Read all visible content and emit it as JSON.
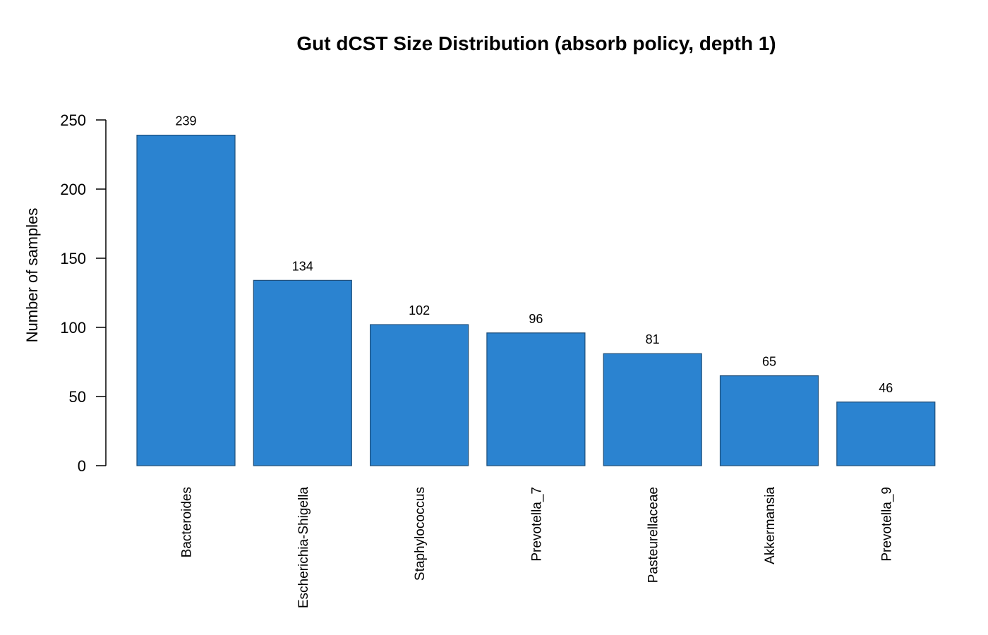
{
  "chart_data": {
    "type": "bar",
    "title": "Gut dCST Size Distribution (absorb policy, depth 1)",
    "xlabel": "",
    "ylabel": "Number of samples",
    "categories": [
      "Bacteroides",
      "Escherichia-Shigella",
      "Staphylococcus",
      "Prevotella_7",
      "Pasteurellaceae",
      "Akkermansia",
      "Prevotella_9"
    ],
    "values": [
      239,
      134,
      102,
      96,
      81,
      65,
      46
    ],
    "ylim": [
      0,
      250
    ],
    "yticks": [
      0,
      50,
      100,
      150,
      200,
      250
    ],
    "grid": false,
    "legend": "none",
    "bar_color": "#2b83d0",
    "bar_edge_color": "#1f4f7a"
  }
}
